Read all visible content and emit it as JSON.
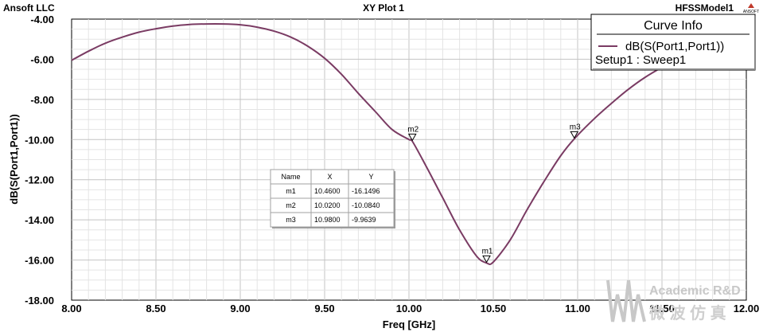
{
  "header": {
    "left": "Ansoft LLC",
    "center": "XY Plot 1",
    "right": "HFSSModel1",
    "logo_text": "ANSOFT"
  },
  "chart_data": {
    "type": "line",
    "xlabel": "Freq [GHz]",
    "ylabel": "dB(S(Port1,Port1))",
    "xlim": [
      8.0,
      12.0
    ],
    "ylim": [
      -18.0,
      -4.0
    ],
    "x_ticks": [
      "8.00",
      "8.50",
      "9.00",
      "9.50",
      "10.00",
      "10.50",
      "11.00",
      "11.50",
      "12.00"
    ],
    "y_ticks": [
      "-4.00",
      "-6.00",
      "-8.00",
      "-10.00",
      "-12.00",
      "-14.00",
      "-16.00",
      "-18.00"
    ],
    "grid": true,
    "series": [
      {
        "name": "dB(S(Port1,Port1))",
        "color": "#7a3b63",
        "x": [
          8.0,
          8.1,
          8.2,
          8.3,
          8.4,
          8.5,
          8.6,
          8.7,
          8.8,
          8.9,
          9.0,
          9.1,
          9.2,
          9.3,
          9.4,
          9.5,
          9.6,
          9.7,
          9.8,
          9.9,
          10.0,
          10.02,
          10.1,
          10.2,
          10.3,
          10.4,
          10.46,
          10.5,
          10.6,
          10.7,
          10.8,
          10.9,
          10.98,
          11.1,
          11.2,
          11.3,
          11.4,
          11.5,
          11.6,
          11.7
        ],
        "y": [
          -6.05,
          -5.6,
          -5.2,
          -4.9,
          -4.65,
          -4.48,
          -4.35,
          -4.27,
          -4.24,
          -4.24,
          -4.28,
          -4.4,
          -4.6,
          -4.9,
          -5.35,
          -5.95,
          -6.75,
          -7.7,
          -8.6,
          -9.5,
          -10.0,
          -10.084,
          -11.3,
          -12.9,
          -14.5,
          -15.8,
          -16.1496,
          -16.1,
          -15.0,
          -13.5,
          -12.1,
          -10.8,
          -9.9639,
          -8.95,
          -8.2,
          -7.5,
          -6.9,
          -6.4,
          -5.95,
          -5.55
        ]
      }
    ],
    "markers": [
      {
        "name": "m1",
        "x": 10.46,
        "y": -16.1496
      },
      {
        "name": "m2",
        "x": 10.02,
        "y": -10.084
      },
      {
        "name": "m3",
        "x": 10.98,
        "y": -9.9639
      }
    ]
  },
  "marker_table": {
    "headers": [
      "Name",
      "X",
      "Y"
    ],
    "rows": [
      [
        "m1",
        "10.4600",
        "-16.1496"
      ],
      [
        "m2",
        "10.0200",
        "-10.0840"
      ],
      [
        "m3",
        "10.9800",
        "-9.9639"
      ]
    ]
  },
  "legend": {
    "title": "Curve Info",
    "entry": "dB(S(Port1,Port1))",
    "setup": "Setup1 : Sweep1"
  },
  "watermark": {
    "line1": "Academic R&D",
    "line2": "微 波 仿 真"
  }
}
